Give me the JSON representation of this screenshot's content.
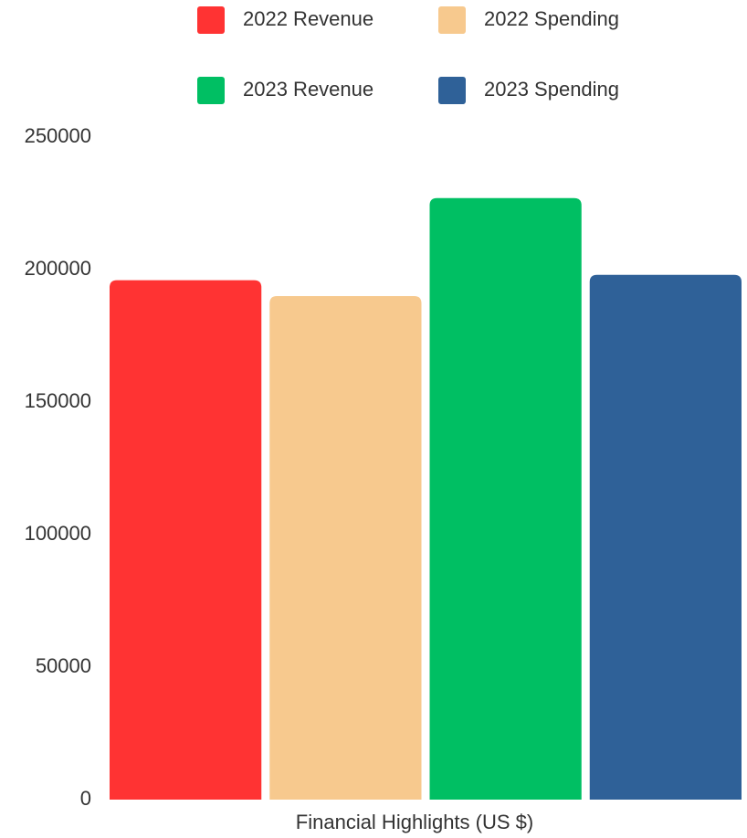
{
  "chart_data": {
    "type": "bar",
    "categories": [
      "Financial Highlights (US $)"
    ],
    "series": [
      {
        "name": "2022 Revenue",
        "color": "#ff3333",
        "values": [
          196000
        ]
      },
      {
        "name": "2022 Spending",
        "color": "#f7c98e",
        "values": [
          190000
        ]
      },
      {
        "name": "2023 Revenue",
        "color": "#00bf63",
        "values": [
          227000
        ]
      },
      {
        "name": "2023 Spending",
        "color": "#2f6198",
        "values": [
          198000
        ]
      }
    ],
    "ylim": [
      0,
      250000
    ],
    "yticks": [
      0,
      50000,
      100000,
      150000,
      200000,
      250000
    ],
    "grid": false
  }
}
